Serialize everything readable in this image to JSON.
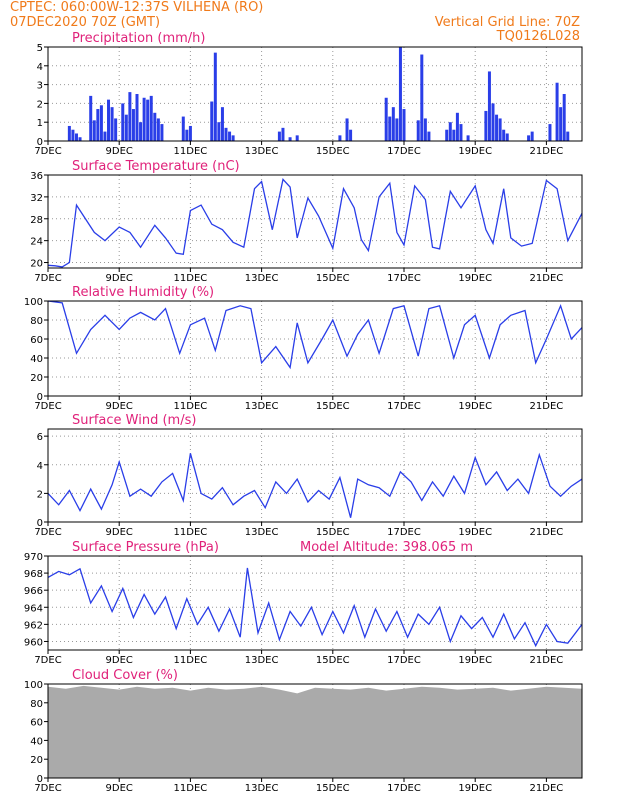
{
  "header": {
    "line1": "CPTEC:   060:00W-12:37S   VILHENA (RO)",
    "line2": "07DEC2020 70Z (GMT)",
    "grid_note": "Vertical Grid Line: 70Z",
    "code": "TQ0126L028"
  },
  "colors": {
    "header": "#f07a1a",
    "title": "#e0227a",
    "series": "#2a3ee8",
    "cloud": "#aaaaaa"
  },
  "x_tick_labels": [
    "7DEC",
    "9DEC",
    "11DEC",
    "13DEC",
    "15DEC",
    "17DEC",
    "19DEC",
    "21DEC"
  ],
  "chart_data": [
    {
      "id": "precip",
      "type": "bar",
      "title": "Precipitation (mm/h)",
      "x_unit": "day of Dec 2020",
      "ylim": [
        0,
        5
      ],
      "yticks": [
        0,
        1,
        2,
        3,
        4,
        5
      ],
      "x": [
        7.6,
        7.7,
        7.8,
        7.9,
        8.2,
        8.3,
        8.4,
        8.5,
        8.6,
        8.7,
        8.8,
        8.9,
        9.1,
        9.2,
        9.3,
        9.4,
        9.5,
        9.6,
        9.7,
        9.8,
        9.9,
        10.0,
        10.1,
        10.2,
        10.8,
        10.9,
        11.0,
        11.6,
        11.7,
        11.8,
        11.9,
        12.0,
        12.1,
        12.2,
        13.5,
        13.6,
        13.8,
        14.0,
        15.2,
        15.4,
        15.5,
        16.5,
        16.6,
        16.7,
        16.8,
        16.9,
        17.0,
        17.4,
        17.5,
        17.6,
        17.7,
        18.2,
        18.3,
        18.4,
        18.5,
        18.6,
        18.8,
        19.3,
        19.4,
        19.5,
        19.6,
        19.7,
        19.8,
        19.9,
        20.5,
        20.6,
        21.1,
        21.3,
        21.4,
        21.5,
        21.6
      ],
      "values": [
        0.8,
        0.6,
        0.4,
        0.2,
        2.4,
        1.1,
        1.7,
        1.9,
        0.5,
        2.2,
        1.8,
        1.2,
        2.0,
        1.4,
        2.6,
        1.7,
        2.5,
        1.0,
        2.3,
        2.2,
        2.4,
        1.5,
        1.2,
        0.9,
        1.3,
        0.6,
        0.8,
        2.1,
        4.7,
        1.0,
        1.8,
        0.7,
        0.5,
        0.3,
        0.5,
        0.7,
        0.2,
        0.3,
        0.3,
        1.2,
        0.6,
        2.3,
        1.3,
        1.8,
        1.2,
        5.0,
        1.7,
        1.1,
        4.6,
        1.2,
        0.5,
        0.6,
        1.0,
        0.6,
        1.5,
        0.9,
        0.3,
        1.6,
        3.7,
        2.0,
        1.4,
        1.2,
        0.6,
        0.4,
        0.3,
        0.5,
        0.9,
        3.1,
        1.8,
        2.5,
        0.5
      ]
    },
    {
      "id": "temp",
      "type": "line",
      "title": "Surface Temperature (nC)",
      "x_unit": "day of Dec 2020",
      "ylim": [
        19,
        36
      ],
      "yticks": [
        20,
        24,
        28,
        32,
        36
      ],
      "x": [
        7.0,
        7.2,
        7.4,
        7.6,
        7.8,
        8.0,
        8.3,
        8.6,
        9.0,
        9.3,
        9.6,
        10.0,
        10.3,
        10.6,
        10.8,
        11.0,
        11.3,
        11.6,
        11.9,
        12.2,
        12.5,
        12.8,
        13.0,
        13.3,
        13.6,
        13.8,
        14.0,
        14.3,
        14.6,
        15.0,
        15.3,
        15.6,
        15.8,
        16.0,
        16.3,
        16.6,
        16.8,
        17.0,
        17.3,
        17.6,
        17.8,
        18.0,
        18.3,
        18.6,
        19.0,
        19.3,
        19.5,
        19.8,
        20.0,
        20.3,
        20.6,
        21.0,
        21.3,
        21.6,
        22.0
      ],
      "values": [
        19.5,
        19.4,
        19.2,
        20,
        30.5,
        28.5,
        25.5,
        24,
        26.5,
        25.5,
        22.8,
        26.8,
        24.5,
        21.7,
        21.5,
        29.5,
        30.5,
        27.0,
        26.0,
        23.7,
        22.8,
        33.5,
        34.8,
        26.0,
        35.2,
        33.8,
        24.5,
        31.8,
        28.5,
        22.6,
        33.5,
        30.0,
        24.2,
        22.2,
        32.0,
        34.5,
        25.5,
        23.2,
        34.0,
        31.5,
        22.8,
        22.5,
        33.0,
        30.0,
        34.0,
        26.0,
        23.5,
        33.5,
        24.5,
        23.0,
        23.5,
        35.0,
        33.5,
        24.0,
        29.0
      ]
    },
    {
      "id": "rh",
      "type": "line",
      "title": "Relative Humidity (%)",
      "x_unit": "day of Dec 2020",
      "ylim": [
        0,
        100
      ],
      "yticks": [
        0,
        20,
        40,
        60,
        80,
        100
      ],
      "x": [
        7.0,
        7.4,
        7.8,
        8.2,
        8.6,
        9.0,
        9.3,
        9.6,
        10.0,
        10.3,
        10.7,
        11.0,
        11.4,
        11.7,
        12.0,
        12.4,
        12.7,
        13.0,
        13.4,
        13.8,
        14.0,
        14.3,
        14.7,
        15.0,
        15.4,
        15.7,
        16.0,
        16.3,
        16.7,
        17.0,
        17.4,
        17.7,
        18.0,
        18.4,
        18.7,
        19.0,
        19.4,
        19.7,
        20.0,
        20.4,
        20.7,
        21.0,
        21.4,
        21.7,
        22.0
      ],
      "values": [
        100,
        98,
        45,
        70,
        85,
        70,
        82,
        88,
        80,
        92,
        45,
        75,
        82,
        48,
        90,
        95,
        92,
        35,
        52,
        30,
        77,
        35,
        60,
        80,
        42,
        65,
        80,
        45,
        92,
        95,
        42,
        92,
        95,
        40,
        75,
        85,
        40,
        75,
        85,
        90,
        35,
        60,
        95,
        60,
        72
      ]
    },
    {
      "id": "wind",
      "type": "line",
      "title": "Surface Wind (m/s)",
      "x_unit": "day of Dec 2020",
      "ylim": [
        0,
        6.5
      ],
      "yticks": [
        0,
        2,
        4,
        6
      ],
      "x": [
        7.0,
        7.3,
        7.6,
        7.9,
        8.2,
        8.5,
        8.8,
        9.0,
        9.3,
        9.6,
        9.9,
        10.2,
        10.5,
        10.8,
        11.0,
        11.3,
        11.6,
        11.9,
        12.2,
        12.5,
        12.8,
        13.1,
        13.4,
        13.7,
        14.0,
        14.3,
        14.6,
        14.9,
        15.2,
        15.5,
        15.7,
        16.0,
        16.3,
        16.6,
        16.9,
        17.2,
        17.5,
        17.8,
        18.1,
        18.4,
        18.7,
        19.0,
        19.3,
        19.6,
        19.9,
        20.2,
        20.5,
        20.8,
        21.1,
        21.4,
        21.7,
        22.0
      ],
      "values": [
        2.0,
        1.2,
        2.2,
        0.8,
        2.3,
        0.9,
        2.6,
        4.2,
        1.8,
        2.3,
        1.8,
        2.8,
        3.4,
        1.5,
        4.8,
        2.0,
        1.6,
        2.4,
        1.2,
        1.8,
        2.2,
        1.0,
        2.8,
        2.0,
        3.0,
        1.4,
        2.2,
        1.6,
        3.1,
        0.3,
        3.0,
        2.6,
        2.4,
        1.8,
        3.5,
        2.8,
        1.5,
        2.8,
        1.8,
        3.2,
        2.0,
        4.5,
        2.6,
        3.5,
        2.2,
        3.0,
        2.0,
        4.7,
        2.5,
        1.8,
        2.5,
        3.0
      ]
    },
    {
      "id": "pres",
      "type": "line",
      "title": "Surface Pressure (hPa)",
      "annotation": "Model Altitude: 398.065 m",
      "x_unit": "day of Dec 2020",
      "ylim": [
        959,
        970
      ],
      "yticks": [
        960,
        962,
        964,
        966,
        968,
        970
      ],
      "x": [
        7.0,
        7.3,
        7.6,
        7.9,
        8.2,
        8.5,
        8.8,
        9.1,
        9.4,
        9.7,
        10.0,
        10.3,
        10.6,
        10.9,
        11.2,
        11.5,
        11.8,
        12.1,
        12.4,
        12.6,
        12.9,
        13.2,
        13.5,
        13.8,
        14.1,
        14.4,
        14.7,
        15.0,
        15.3,
        15.6,
        15.9,
        16.2,
        16.5,
        16.8,
        17.1,
        17.4,
        17.7,
        18.0,
        18.3,
        18.6,
        18.9,
        19.2,
        19.5,
        19.8,
        20.1,
        20.4,
        20.7,
        21.0,
        21.3,
        21.6,
        22.0
      ],
      "values": [
        967.5,
        968.2,
        967.8,
        968.5,
        964.5,
        966.5,
        963.5,
        966.2,
        962.8,
        965.5,
        963.2,
        965.2,
        961.5,
        965.0,
        962.0,
        964.0,
        961.2,
        963.8,
        960.5,
        968.6,
        961.0,
        964.5,
        960.2,
        963.5,
        961.8,
        964.0,
        960.8,
        963.5,
        961.0,
        964.2,
        960.5,
        963.8,
        961.2,
        963.5,
        960.5,
        963.2,
        962.0,
        964.0,
        960.0,
        963.0,
        961.5,
        962.8,
        960.5,
        963.2,
        960.3,
        962.2,
        959.5,
        962.0,
        960.0,
        959.8,
        962.0
      ]
    },
    {
      "id": "cloud",
      "type": "area",
      "title": "Cloud Cover (%)",
      "x_unit": "day of Dec 2020",
      "ylim": [
        0,
        100
      ],
      "yticks": [
        0,
        20,
        40,
        60,
        80,
        100
      ],
      "x": [
        7.0,
        7.5,
        8.0,
        8.5,
        9.0,
        9.5,
        10.0,
        10.5,
        11.0,
        11.5,
        12.0,
        12.5,
        13.0,
        13.5,
        14.0,
        14.5,
        15.0,
        15.5,
        16.0,
        16.5,
        17.0,
        17.5,
        18.0,
        18.5,
        19.0,
        19.5,
        20.0,
        20.5,
        21.0,
        21.5,
        22.0
      ],
      "values": [
        97,
        95,
        98,
        96,
        94,
        97,
        95,
        96,
        93,
        96,
        94,
        95,
        97,
        94,
        90,
        96,
        95,
        94,
        96,
        93,
        95,
        97,
        96,
        94,
        95,
        96,
        93,
        95,
        97,
        96,
        95
      ]
    }
  ]
}
